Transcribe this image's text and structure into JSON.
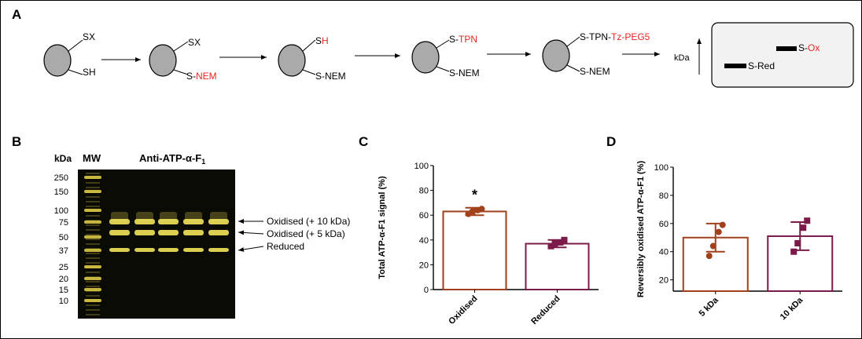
{
  "panels": {
    "a": "A",
    "b": "B",
    "c": "C",
    "d": "D"
  },
  "scheme": {
    "steps": [
      {
        "top": "SX",
        "bottom": "SH",
        "bottom_highlight": ""
      },
      {
        "top": "SX",
        "bottom": "S-",
        "bottom_highlight": "NEM"
      },
      {
        "top": "S",
        "top_highlight": "H",
        "bottom": "S-NEM"
      },
      {
        "top": "S-",
        "top_highlight": "TPN",
        "bottom": "S-NEM"
      },
      {
        "top": "S-TPN-",
        "top_highlight": "Tz-PEG5",
        "bottom": "S-NEM"
      }
    ],
    "kda_label": "kDa",
    "gel_bands": {
      "ox_prefix": "S-",
      "ox_highlight": "Ox",
      "red_label": "S-Red"
    }
  },
  "blot": {
    "kda_header": "kDa",
    "mw_label": "MW",
    "antibody_label": "Anti-ATP-α-F",
    "antibody_sub": "1",
    "markers": [
      "250",
      "150",
      "100",
      "75",
      "50",
      "37",
      "25",
      "20",
      "15",
      "10"
    ],
    "band_labels": [
      "Oxidised (+ 10 kDa)",
      "Oxidised (+ 5 kDa)",
      "Reduced"
    ],
    "colors": {
      "background": "#0b0b06",
      "band": "#f2e35a",
      "ladder": "#e6d24a"
    }
  },
  "chart_data": [
    {
      "type": "bar",
      "panel": "C",
      "ylabel": "Total ATP-α-F1 signal (%)",
      "categories": [
        "Oxidised",
        "Reduced"
      ],
      "values": [
        63,
        37
      ],
      "error": [
        3,
        3
      ],
      "points": [
        [
          61,
          63,
          64,
          65
        ],
        [
          35,
          37,
          38,
          40
        ]
      ],
      "yticks": [
        "0",
        "20",
        "40",
        "60",
        "80",
        "100"
      ],
      "ylim": [
        0,
        100
      ],
      "annotation": "*",
      "colors": [
        "#a0411c",
        "#7a1b4a"
      ]
    },
    {
      "type": "bar",
      "panel": "D",
      "ylabel": "Reversibly oxidised ATP-α-F1 (%)",
      "categories": [
        "5 kDa",
        "10 kDa"
      ],
      "values": [
        50,
        51
      ],
      "error": [
        10,
        10
      ],
      "points": [
        [
          37,
          44,
          54,
          59
        ],
        [
          40,
          46,
          57,
          62
        ]
      ],
      "yticks": [
        "20",
        "40",
        "60",
        "80",
        "100"
      ],
      "ylim": [
        12,
        100
      ],
      "colors": [
        "#a0411c",
        "#7a1b4a"
      ]
    }
  ]
}
